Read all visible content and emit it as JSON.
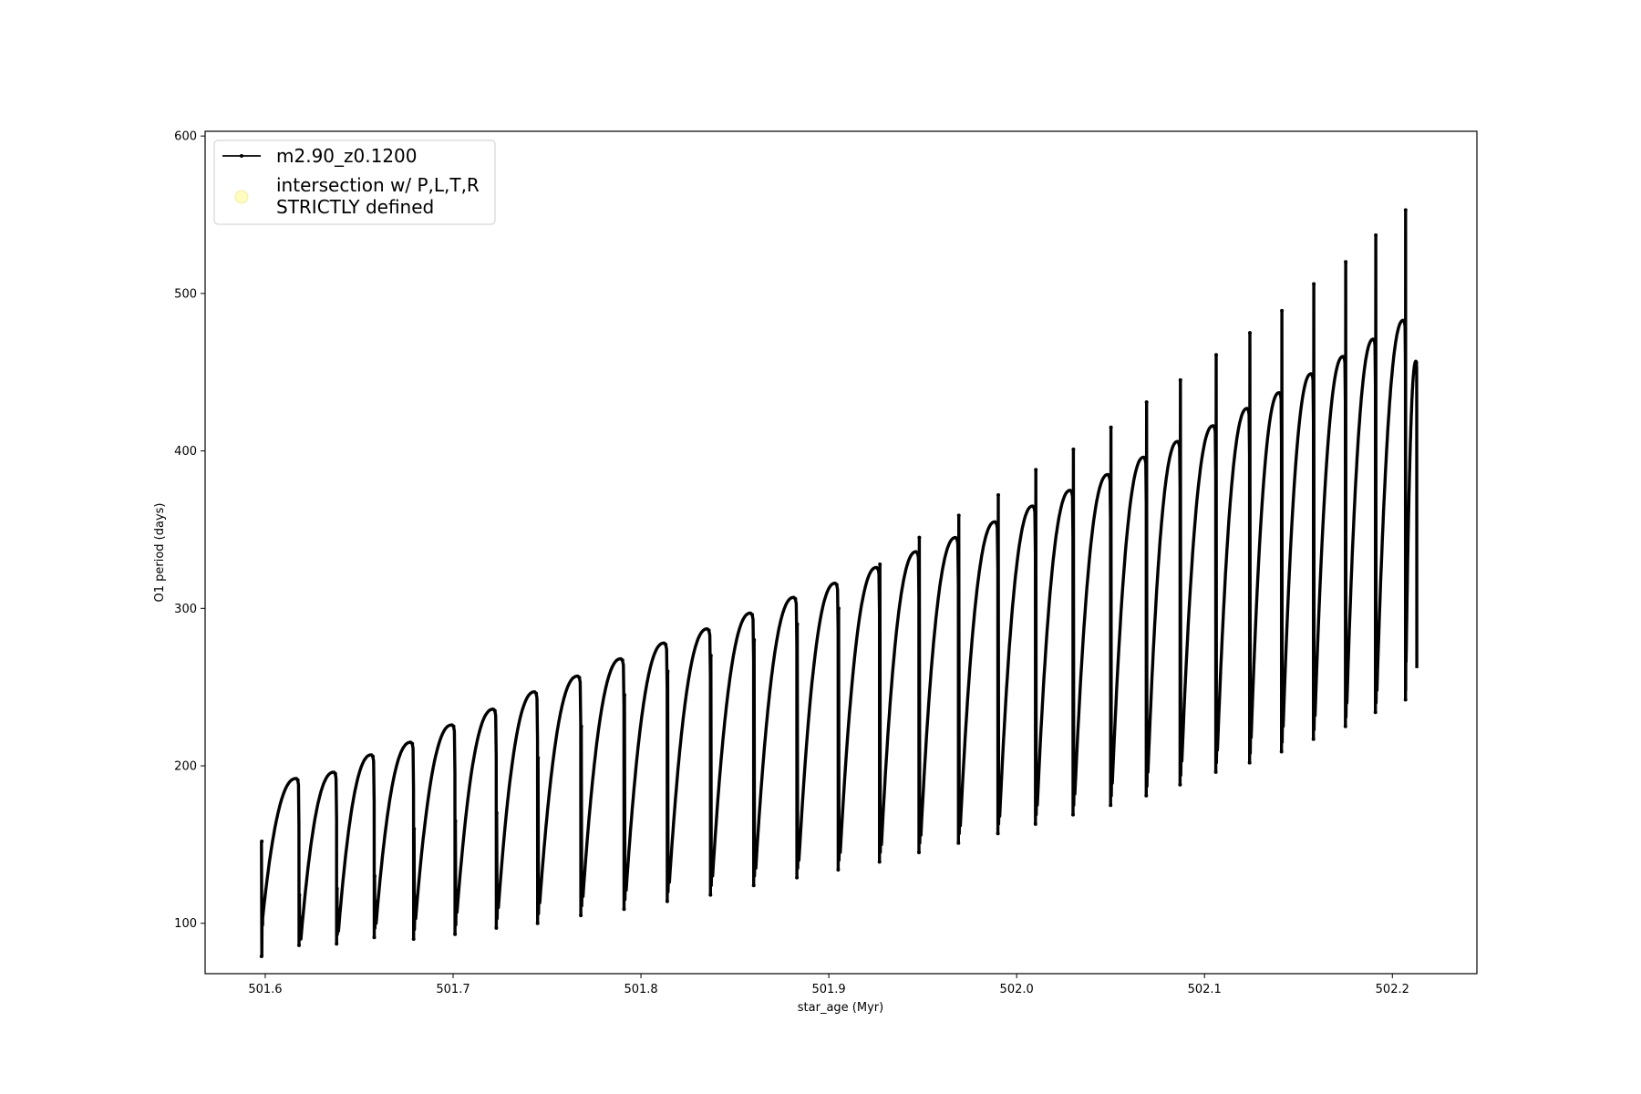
{
  "chart_data": {
    "type": "line",
    "title": "",
    "xlabel": "star_age (Myr)",
    "ylabel": "O1 period (days)",
    "xlim": [
      501.568,
      502.245
    ],
    "ylim": [
      68,
      603
    ],
    "xticks": [
      501.6,
      501.7,
      501.8,
      501.9,
      502.0,
      502.1,
      502.2
    ],
    "xtick_labels": [
      "501.6",
      "501.7",
      "501.8",
      "501.9",
      "502.0",
      "502.1",
      "502.2"
    ],
    "yticks": [
      100,
      200,
      300,
      400,
      500,
      600
    ],
    "ytick_labels": [
      "100",
      "200",
      "300",
      "400",
      "500",
      "600"
    ],
    "grid": false,
    "legend_position": "top-left",
    "series": [
      {
        "name": "m2.90_z0.1200",
        "color": "#000000",
        "marker": "dot",
        "cycles": [
          {
            "start": 501.598,
            "end": 501.618,
            "min": 79,
            "low": 103,
            "peak": 192,
            "spike": 152
          },
          {
            "start": 501.618,
            "end": 501.638,
            "min": 86,
            "low": 90,
            "peak": 196,
            "spike": 118
          },
          {
            "start": 501.638,
            "end": 501.658,
            "min": 87,
            "low": 95,
            "peak": 207,
            "spike": 122
          },
          {
            "start": 501.658,
            "end": 501.679,
            "min": 91,
            "low": 100,
            "peak": 215,
            "spike": 130
          },
          {
            "start": 501.679,
            "end": 501.701,
            "min": 90,
            "low": 103,
            "peak": 226,
            "spike": 160
          },
          {
            "start": 501.701,
            "end": 501.723,
            "min": 93,
            "low": 107,
            "peak": 236,
            "spike": 165
          },
          {
            "start": 501.723,
            "end": 501.745,
            "min": 97,
            "low": 110,
            "peak": 247,
            "spike": 170
          },
          {
            "start": 501.745,
            "end": 501.768,
            "min": 100,
            "low": 113,
            "peak": 257,
            "spike": 205
          },
          {
            "start": 501.768,
            "end": 501.791,
            "min": 105,
            "low": 117,
            "peak": 268,
            "spike": 225
          },
          {
            "start": 501.791,
            "end": 501.814,
            "min": 109,
            "low": 121,
            "peak": 278,
            "spike": 245
          },
          {
            "start": 501.814,
            "end": 501.837,
            "min": 114,
            "low": 126,
            "peak": 287,
            "spike": 260
          },
          {
            "start": 501.837,
            "end": 501.86,
            "min": 118,
            "low": 130,
            "peak": 297,
            "spike": 270
          },
          {
            "start": 501.86,
            "end": 501.883,
            "min": 124,
            "low": 135,
            "peak": 307,
            "spike": 280
          },
          {
            "start": 501.883,
            "end": 501.905,
            "min": 129,
            "low": 140,
            "peak": 316,
            "spike": 290
          },
          {
            "start": 501.905,
            "end": 501.927,
            "min": 134,
            "low": 145,
            "peak": 326,
            "spike": 300
          },
          {
            "start": 501.927,
            "end": 501.948,
            "min": 139,
            "low": 150,
            "peak": 336,
            "spike": 328
          },
          {
            "start": 501.948,
            "end": 501.969,
            "min": 145,
            "low": 156,
            "peak": 345,
            "spike": 345
          },
          {
            "start": 501.969,
            "end": 501.99,
            "min": 151,
            "low": 162,
            "peak": 355,
            "spike": 359
          },
          {
            "start": 501.99,
            "end": 502.01,
            "min": 157,
            "low": 168,
            "peak": 365,
            "spike": 372
          },
          {
            "start": 502.01,
            "end": 502.03,
            "min": 163,
            "low": 175,
            "peak": 375,
            "spike": 388
          },
          {
            "start": 502.03,
            "end": 502.05,
            "min": 169,
            "low": 182,
            "peak": 385,
            "spike": 401
          },
          {
            "start": 502.05,
            "end": 502.069,
            "min": 175,
            "low": 189,
            "peak": 396,
            "spike": 415
          },
          {
            "start": 502.069,
            "end": 502.087,
            "min": 181,
            "low": 196,
            "peak": 406,
            "spike": 431
          },
          {
            "start": 502.087,
            "end": 502.106,
            "min": 188,
            "low": 203,
            "peak": 416,
            "spike": 445
          },
          {
            "start": 502.106,
            "end": 502.124,
            "min": 196,
            "low": 210,
            "peak": 427,
            "spike": 461
          },
          {
            "start": 502.124,
            "end": 502.141,
            "min": 202,
            "low": 218,
            "peak": 437,
            "spike": 475
          },
          {
            "start": 502.141,
            "end": 502.158,
            "min": 209,
            "low": 225,
            "peak": 449,
            "spike": 489
          },
          {
            "start": 502.158,
            "end": 502.175,
            "min": 217,
            "low": 232,
            "peak": 460,
            "spike": 506
          },
          {
            "start": 502.175,
            "end": 502.191,
            "min": 225,
            "low": 240,
            "peak": 471,
            "spike": 520
          },
          {
            "start": 502.191,
            "end": 502.207,
            "min": 234,
            "low": 248,
            "peak": 483,
            "spike": 537
          },
          {
            "start": 502.207,
            "end": 502.213,
            "min": 242,
            "low": 266,
            "peak": 457,
            "spike": 553
          }
        ]
      },
      {
        "name": "intersection w/ P,L,T,R STRICTLY defined",
        "legend_lines": [
          "intersection w/ P,L,T,R",
          "STRICTLY defined"
        ],
        "color": "#fffcc0",
        "marker": "circle",
        "points": []
      }
    ]
  }
}
